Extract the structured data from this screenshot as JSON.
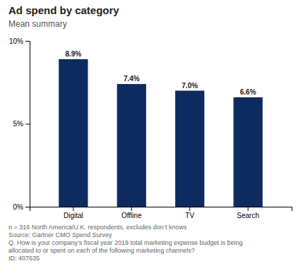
{
  "chart_data": {
    "type": "bar",
    "title": "Ad spend by category",
    "subtitle": "Mean summary",
    "categories": [
      "Digital",
      "Offline",
      "TV",
      "Search"
    ],
    "values": [
      8.9,
      7.4,
      7.0,
      6.6
    ],
    "value_labels": [
      "8.9%",
      "7.4%",
      "7.0%",
      "6.6%"
    ],
    "data_labels": true,
    "color": "#0d2b5e",
    "ylim": [
      0,
      10
    ],
    "yticks": [
      {
        "value": 0,
        "label": "0%"
      },
      {
        "value": 5,
        "label": "5%"
      },
      {
        "value": 10,
        "label": "10%"
      }
    ],
    "grid": false,
    "annotations": [
      "n = 316 North America/U.K. respondents, excludes don’t knows",
      "Source: Gartner CMO Spend Survey",
      "Q. How is your company’s fiscal year 2019 total marketing expense budget is being",
      "allocated to or spent on each of the following marketing channels?",
      "ID: 407635"
    ]
  }
}
